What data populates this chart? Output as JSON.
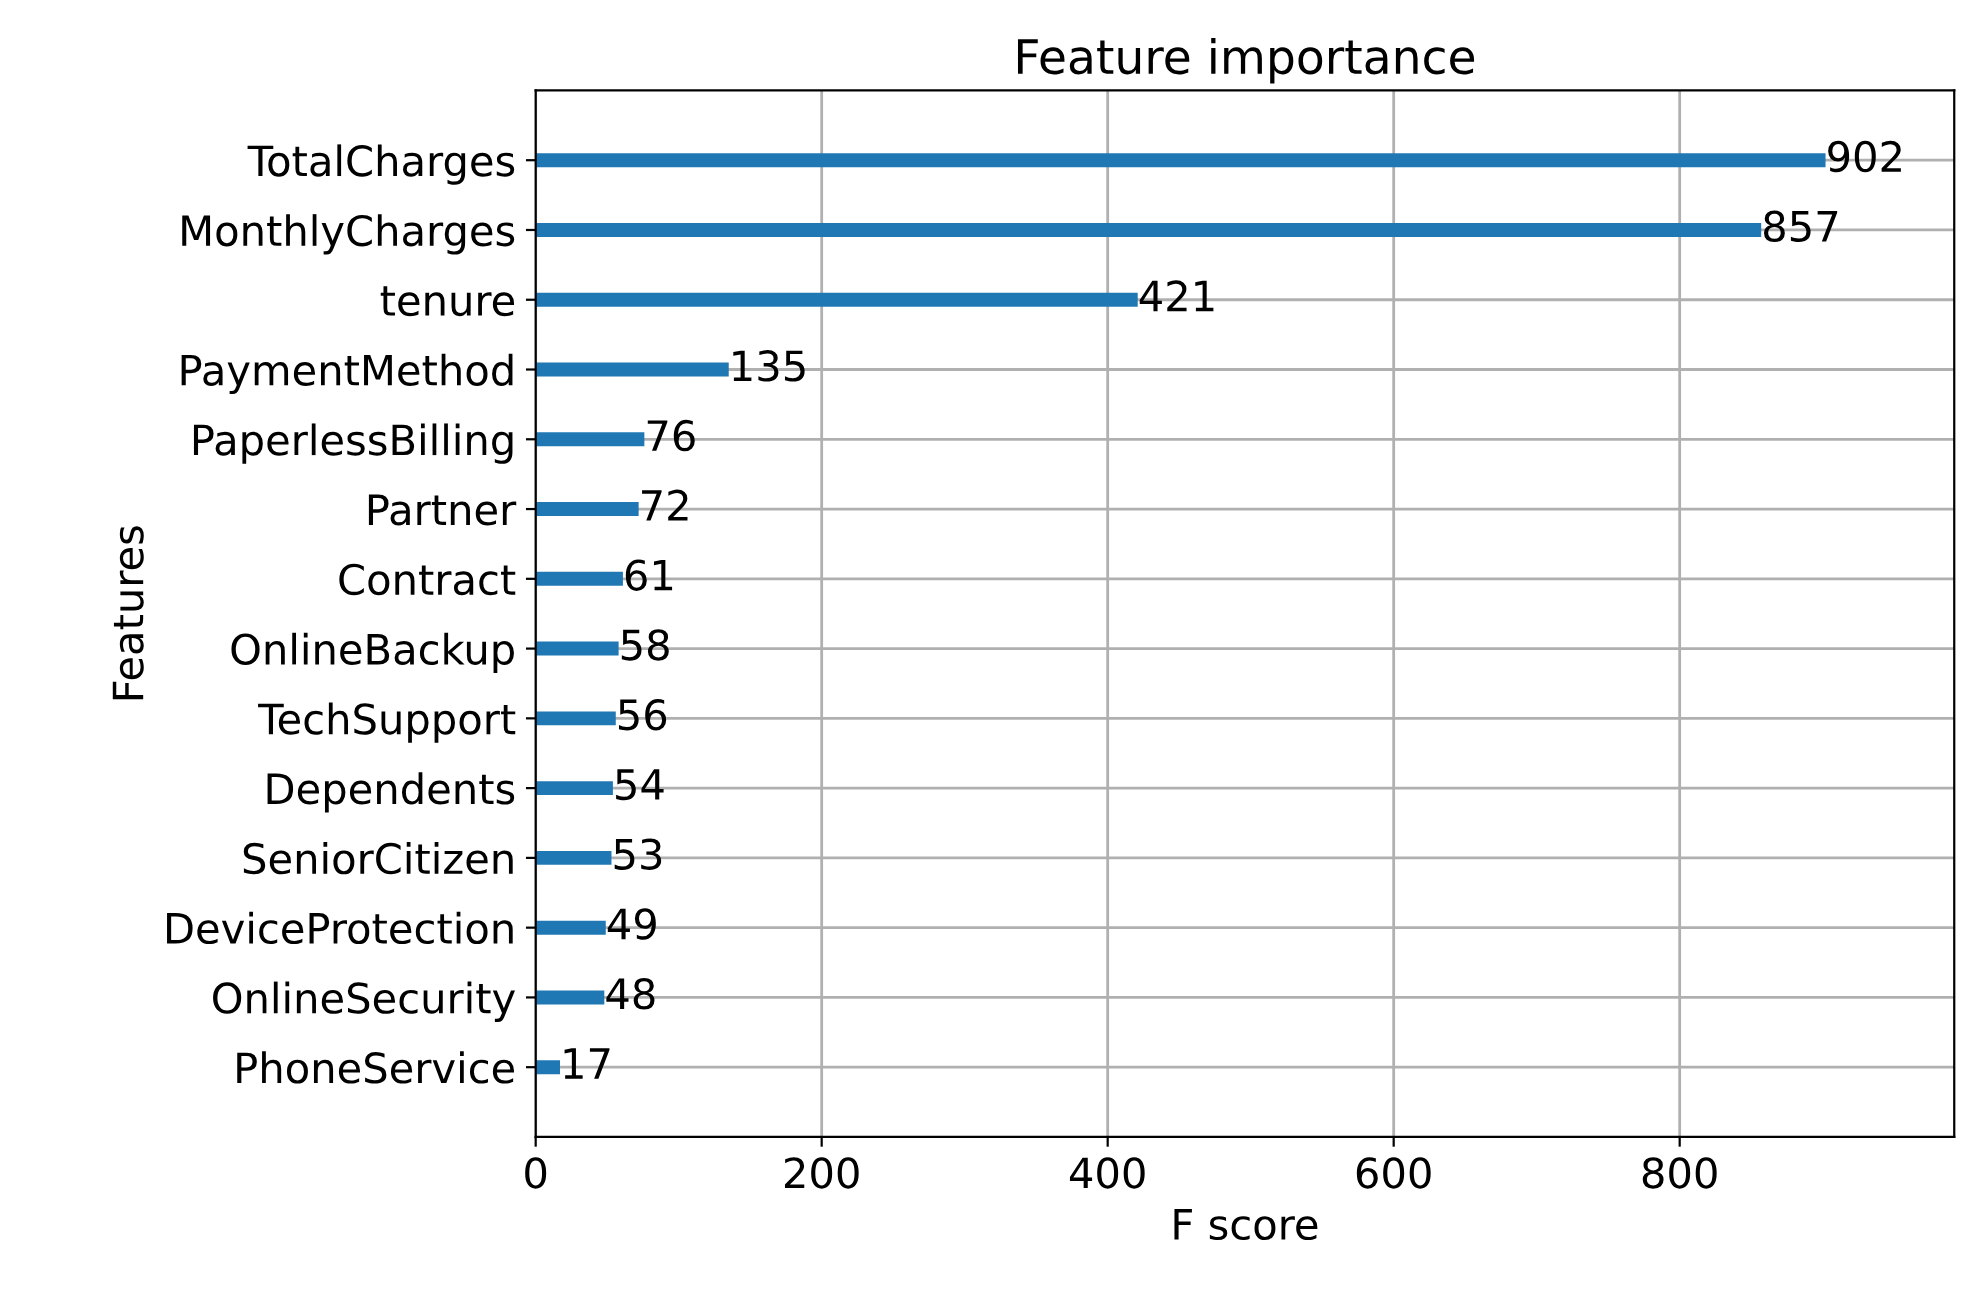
{
  "chart_data": {
    "type": "bar",
    "orientation": "horizontal",
    "title": "Feature importance",
    "xlabel": "F score",
    "ylabel": "Features",
    "categories": [
      "TotalCharges",
      "MonthlyCharges",
      "tenure",
      "PaymentMethod",
      "PaperlessBilling",
      "Partner",
      "Contract",
      "OnlineBackup",
      "TechSupport",
      "Dependents",
      "SeniorCitizen",
      "DeviceProtection",
      "OnlineSecurity",
      "PhoneService"
    ],
    "values": [
      902,
      857,
      421,
      135,
      76,
      72,
      61,
      58,
      56,
      54,
      53,
      49,
      48,
      17
    ],
    "color": "#1f77b4",
    "xlim": [
      0,
      992
    ],
    "xticks": [
      0,
      200,
      400,
      600,
      800
    ],
    "grid": true,
    "data_labels": true
  }
}
